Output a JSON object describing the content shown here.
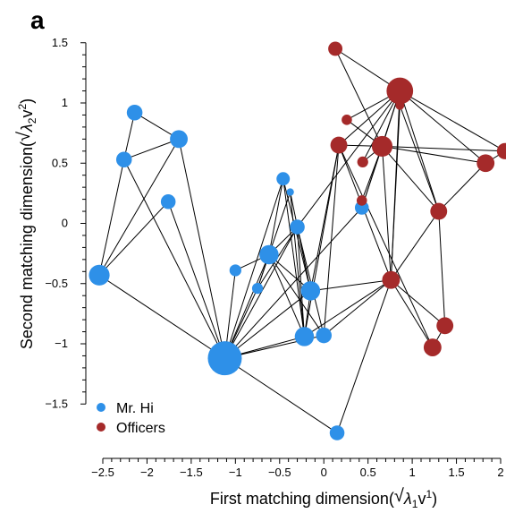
{
  "panel_label": "a",
  "colors": {
    "mr_hi": "#2e90e8",
    "officers": "#a52a2a",
    "edge": "#000000",
    "axis": "#000000"
  },
  "chart_data": {
    "type": "scatter",
    "xlabel": {
      "prefix": "First matching dimension(",
      "lambda": "λ",
      "sub": "1",
      "v": "v",
      "sup": "1",
      "suffix": ")"
    },
    "ylabel": {
      "prefix": "Second matching dimension(",
      "lambda": "λ",
      "sub": "2",
      "v": "v",
      "sup": "2",
      "suffix": ")"
    },
    "xlim": [
      -2.55,
      2.05
    ],
    "ylim": [
      -1.6,
      1.55
    ],
    "x_ticks": [
      {
        "value": -2.5,
        "label": "−2.5"
      },
      {
        "value": -2,
        "label": "−2"
      },
      {
        "value": -1.5,
        "label": "−1.5"
      },
      {
        "value": -1,
        "label": "−1"
      },
      {
        "value": -0.5,
        "label": "−0.5"
      },
      {
        "value": 0,
        "label": "0"
      },
      {
        "value": 0.5,
        "label": "0.5"
      },
      {
        "value": 1,
        "label": "1"
      },
      {
        "value": 1.5,
        "label": "1.5"
      },
      {
        "value": 2,
        "label": "2"
      }
    ],
    "y_ticks": [
      {
        "value": -1.5,
        "label": "−1.5"
      },
      {
        "value": -1,
        "label": "−1"
      },
      {
        "value": -0.5,
        "label": "−0.5"
      },
      {
        "value": 0,
        "label": "0"
      },
      {
        "value": 0.5,
        "label": "0.5"
      },
      {
        "value": 1,
        "label": "1"
      },
      {
        "value": 1.5,
        "label": "1.5"
      }
    ],
    "grid": false,
    "legend": {
      "placement": "bottom-left",
      "entries": [
        {
          "label": "Mr. Hi",
          "group": "mr_hi"
        },
        {
          "label": "Officers",
          "group": "officers"
        }
      ]
    },
    "nodes": [
      {
        "id": 1,
        "x": -1.12,
        "y": -1.12,
        "size": 1.0,
        "group": "mr_hi"
      },
      {
        "id": 2,
        "x": -2.54,
        "y": -0.43,
        "size": 0.55,
        "group": "mr_hi"
      },
      {
        "id": 3,
        "x": -2.14,
        "y": 0.92,
        "size": 0.38,
        "group": "mr_hi"
      },
      {
        "id": 4,
        "x": -2.26,
        "y": 0.53,
        "size": 0.38,
        "group": "mr_hi"
      },
      {
        "id": 5,
        "x": -1.64,
        "y": 0.7,
        "size": 0.45,
        "group": "mr_hi"
      },
      {
        "id": 6,
        "x": -1.76,
        "y": 0.18,
        "size": 0.35,
        "group": "mr_hi"
      },
      {
        "id": 7,
        "x": -1.0,
        "y": -0.39,
        "size": 0.25,
        "group": "mr_hi"
      },
      {
        "id": 8,
        "x": -0.62,
        "y": -0.26,
        "size": 0.5,
        "group": "mr_hi"
      },
      {
        "id": 9,
        "x": -0.75,
        "y": -0.54,
        "size": 0.22,
        "group": "mr_hi"
      },
      {
        "id": 10,
        "x": -0.46,
        "y": 0.37,
        "size": 0.3,
        "group": "mr_hi"
      },
      {
        "id": 11,
        "x": -0.38,
        "y": 0.26,
        "size": 0.1,
        "group": "mr_hi"
      },
      {
        "id": 12,
        "x": -0.3,
        "y": -0.03,
        "size": 0.35,
        "group": "mr_hi"
      },
      {
        "id": 13,
        "x": -0.15,
        "y": -0.56,
        "size": 0.5,
        "group": "mr_hi"
      },
      {
        "id": 14,
        "x": -0.22,
        "y": -0.94,
        "size": 0.5,
        "group": "mr_hi"
      },
      {
        "id": 15,
        "x": 0.0,
        "y": -0.93,
        "size": 0.38,
        "group": "mr_hi"
      },
      {
        "id": 16,
        "x": 0.43,
        "y": 0.13,
        "size": 0.32,
        "group": "mr_hi"
      },
      {
        "id": 17,
        "x": 0.15,
        "y": -1.74,
        "size": 0.35,
        "group": "mr_hi"
      },
      {
        "id": 18,
        "x": 0.13,
        "y": 1.45,
        "size": 0.33,
        "group": "officers"
      },
      {
        "id": 19,
        "x": 0.86,
        "y": 1.1,
        "size": 0.75,
        "group": "officers"
      },
      {
        "id": 20,
        "x": 0.26,
        "y": 0.86,
        "size": 0.2,
        "group": "officers"
      },
      {
        "id": 21,
        "x": 0.17,
        "y": 0.65,
        "size": 0.42,
        "group": "officers"
      },
      {
        "id": 22,
        "x": 0.66,
        "y": 0.64,
        "size": 0.55,
        "group": "officers"
      },
      {
        "id": 23,
        "x": 0.44,
        "y": 0.51,
        "size": 0.22,
        "group": "officers"
      },
      {
        "id": 24,
        "x": 0.43,
        "y": 0.19,
        "size": 0.2,
        "group": "officers"
      },
      {
        "id": 25,
        "x": 1.83,
        "y": 0.5,
        "size": 0.45,
        "group": "officers"
      },
      {
        "id": 26,
        "x": 2.05,
        "y": 0.6,
        "size": 0.4,
        "group": "officers"
      },
      {
        "id": 27,
        "x": 1.3,
        "y": 0.1,
        "size": 0.42,
        "group": "officers"
      },
      {
        "id": 28,
        "x": 0.86,
        "y": 0.98,
        "size": 0.15,
        "group": "officers"
      },
      {
        "id": 29,
        "x": 0.76,
        "y": -0.47,
        "size": 0.45,
        "group": "officers"
      },
      {
        "id": 30,
        "x": 1.37,
        "y": -0.85,
        "size": 0.42,
        "group": "officers"
      },
      {
        "id": 31,
        "x": 1.23,
        "y": -1.03,
        "size": 0.45,
        "group": "officers"
      }
    ],
    "edges": [
      [
        1,
        2
      ],
      [
        1,
        4
      ],
      [
        1,
        5
      ],
      [
        1,
        6
      ],
      [
        1,
        7
      ],
      [
        1,
        8
      ],
      [
        1,
        9
      ],
      [
        1,
        10
      ],
      [
        1,
        12
      ],
      [
        1,
        13
      ],
      [
        1,
        14
      ],
      [
        1,
        15
      ],
      [
        1,
        16
      ],
      [
        1,
        17
      ],
      [
        2,
        4
      ],
      [
        2,
        5
      ],
      [
        2,
        6
      ],
      [
        3,
        4
      ],
      [
        3,
        5
      ],
      [
        4,
        5
      ],
      [
        7,
        8
      ],
      [
        8,
        9
      ],
      [
        8,
        12
      ],
      [
        8,
        13
      ],
      [
        8,
        14
      ],
      [
        8,
        15
      ],
      [
        8,
        10
      ],
      [
        9,
        11
      ],
      [
        9,
        12
      ],
      [
        10,
        14
      ],
      [
        10,
        13
      ],
      [
        11,
        13
      ],
      [
        11,
        14
      ],
      [
        12,
        13
      ],
      [
        12,
        15
      ],
      [
        12,
        14
      ],
      [
        12,
        19
      ],
      [
        13,
        14
      ],
      [
        13,
        29
      ],
      [
        13,
        21
      ],
      [
        14,
        21
      ],
      [
        14,
        29
      ],
      [
        15,
        29
      ],
      [
        15,
        21
      ],
      [
        16,
        19
      ],
      [
        16,
        22
      ],
      [
        17,
        29
      ],
      [
        18,
        19
      ],
      [
        18,
        22
      ],
      [
        19,
        21
      ],
      [
        19,
        22
      ],
      [
        19,
        25
      ],
      [
        19,
        26
      ],
      [
        19,
        27
      ],
      [
        19,
        29
      ],
      [
        19,
        20
      ],
      [
        19,
        23
      ],
      [
        19,
        28
      ],
      [
        20,
        22
      ],
      [
        21,
        22
      ],
      [
        21,
        29
      ],
      [
        21,
        31
      ],
      [
        22,
        23
      ],
      [
        22,
        24
      ],
      [
        22,
        25
      ],
      [
        22,
        27
      ],
      [
        22,
        29
      ],
      [
        22,
        26
      ],
      [
        25,
        26
      ],
      [
        25,
        27
      ],
      [
        27,
        29
      ],
      [
        27,
        30
      ],
      [
        27,
        28
      ],
      [
        28,
        29
      ],
      [
        29,
        30
      ],
      [
        29,
        31
      ],
      [
        30,
        31
      ]
    ]
  }
}
